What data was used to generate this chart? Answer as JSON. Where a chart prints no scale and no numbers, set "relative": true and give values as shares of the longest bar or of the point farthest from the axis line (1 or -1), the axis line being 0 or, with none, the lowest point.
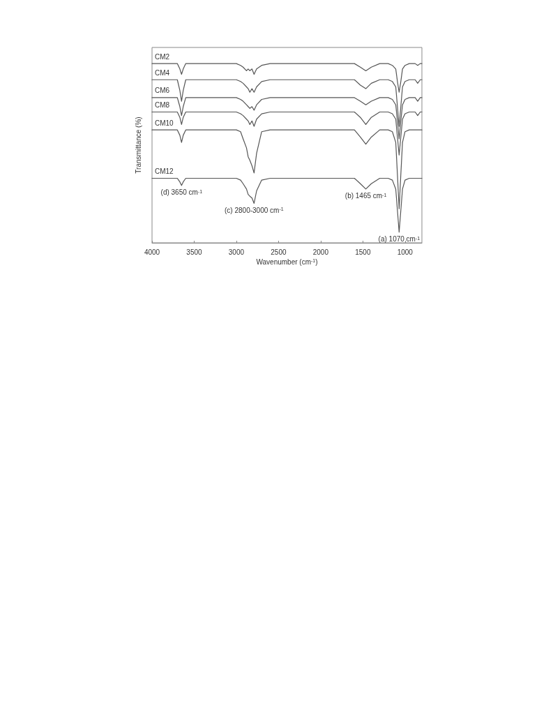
{
  "chart_data": {
    "type": "line",
    "relative": true,
    "xlabel": "Wavenumber (cm$^{-1}$)",
    "ylabel": "Transmittance (%)",
    "x": [
      4000,
      3700,
      3670,
      3650,
      3630,
      3600,
      3000,
      2950,
      2920,
      2880,
      2860,
      2840,
      2815,
      2790,
      2760,
      2700,
      2600,
      1600,
      1530,
      1465,
      1400,
      1300,
      1200,
      1150,
      1110,
      1090,
      1070,
      1050,
      1030,
      1000,
      950,
      880,
      850,
      820,
      800
    ],
    "xlim": [
      4000,
      800
    ],
    "xticks": [
      4000,
      3500,
      3000,
      2500,
      2000,
      1500,
      1000
    ],
    "legend": false,
    "marker": "none",
    "line_style": "solid",
    "series": [
      {
        "name": "CM2",
        "color": "#555555",
        "values": [
          1,
          1,
          0.97,
          0.94,
          0.97,
          1,
          1,
          0.99,
          0.98,
          0.96,
          0.97,
          0.96,
          0.97,
          0.94,
          0.97,
          0.99,
          1,
          1,
          0.98,
          0.96,
          0.98,
          1,
          1,
          0.99,
          0.97,
          0.9,
          0.84,
          0.9,
          0.97,
          0.99,
          1,
          1,
          0.99,
          1,
          1
        ]
      },
      {
        "name": "CM4",
        "color": "#555555",
        "values": [
          0.91,
          0.91,
          0.85,
          0.79,
          0.85,
          0.91,
          0.91,
          0.9,
          0.89,
          0.87,
          0.86,
          0.84,
          0.86,
          0.84,
          0.87,
          0.9,
          0.91,
          0.91,
          0.88,
          0.86,
          0.89,
          0.91,
          0.91,
          0.9,
          0.87,
          0.76,
          0.65,
          0.76,
          0.87,
          0.9,
          0.91,
          0.91,
          0.89,
          0.91,
          0.91
        ]
      },
      {
        "name": "CM6",
        "color": "#555555",
        "values": [
          0.81,
          0.81,
          0.76,
          0.71,
          0.76,
          0.81,
          0.81,
          0.8,
          0.79,
          0.77,
          0.76,
          0.75,
          0.76,
          0.74,
          0.77,
          0.8,
          0.81,
          0.81,
          0.79,
          0.77,
          0.79,
          0.81,
          0.81,
          0.8,
          0.77,
          0.68,
          0.58,
          0.68,
          0.77,
          0.8,
          0.81,
          0.81,
          0.79,
          0.81,
          0.81
        ]
      },
      {
        "name": "CM8",
        "color": "#555555",
        "values": [
          0.73,
          0.73,
          0.7,
          0.66,
          0.7,
          0.73,
          0.73,
          0.72,
          0.71,
          0.69,
          0.68,
          0.66,
          0.68,
          0.65,
          0.69,
          0.72,
          0.73,
          0.73,
          0.7,
          0.66,
          0.7,
          0.73,
          0.73,
          0.72,
          0.69,
          0.59,
          0.49,
          0.59,
          0.69,
          0.72,
          0.73,
          0.73,
          0.71,
          0.73,
          0.73
        ]
      },
      {
        "name": "CM10",
        "color": "#555555",
        "values": [
          0.63,
          0.63,
          0.6,
          0.56,
          0.6,
          0.63,
          0.63,
          0.62,
          0.58,
          0.53,
          0.48,
          0.46,
          0.43,
          0.39,
          0.5,
          0.62,
          0.63,
          0.63,
          0.59,
          0.55,
          0.59,
          0.63,
          0.63,
          0.62,
          0.56,
          0.38,
          0.19,
          0.38,
          0.56,
          0.62,
          0.63,
          0.63,
          0.63,
          0.63,
          0.63
        ]
      },
      {
        "name": "CM12",
        "color": "#555555",
        "values": [
          0.36,
          0.36,
          0.34,
          0.32,
          0.34,
          0.36,
          0.36,
          0.35,
          0.33,
          0.3,
          0.27,
          0.26,
          0.25,
          0.22,
          0.29,
          0.35,
          0.36,
          0.36,
          0.33,
          0.3,
          0.33,
          0.36,
          0.36,
          0.35,
          0.3,
          0.18,
          0.06,
          0.18,
          0.3,
          0.35,
          0.36,
          0.36,
          0.36,
          0.36,
          0.36
        ]
      }
    ],
    "annotations": [
      {
        "text": "(d) 3650 cm$^{-1}$",
        "x": 3650,
        "y": 0.32
      },
      {
        "text": "(c) 2800-3000 cm$^{-1}$",
        "x": 2790,
        "y": 0.22
      },
      {
        "text": "(b) 1465 cm$^{-1}$",
        "x": 1465,
        "y": 0.3
      },
      {
        "text": "(a) 1070 cm$^{-1}$",
        "x": 1070,
        "y": 0.06
      }
    ]
  }
}
